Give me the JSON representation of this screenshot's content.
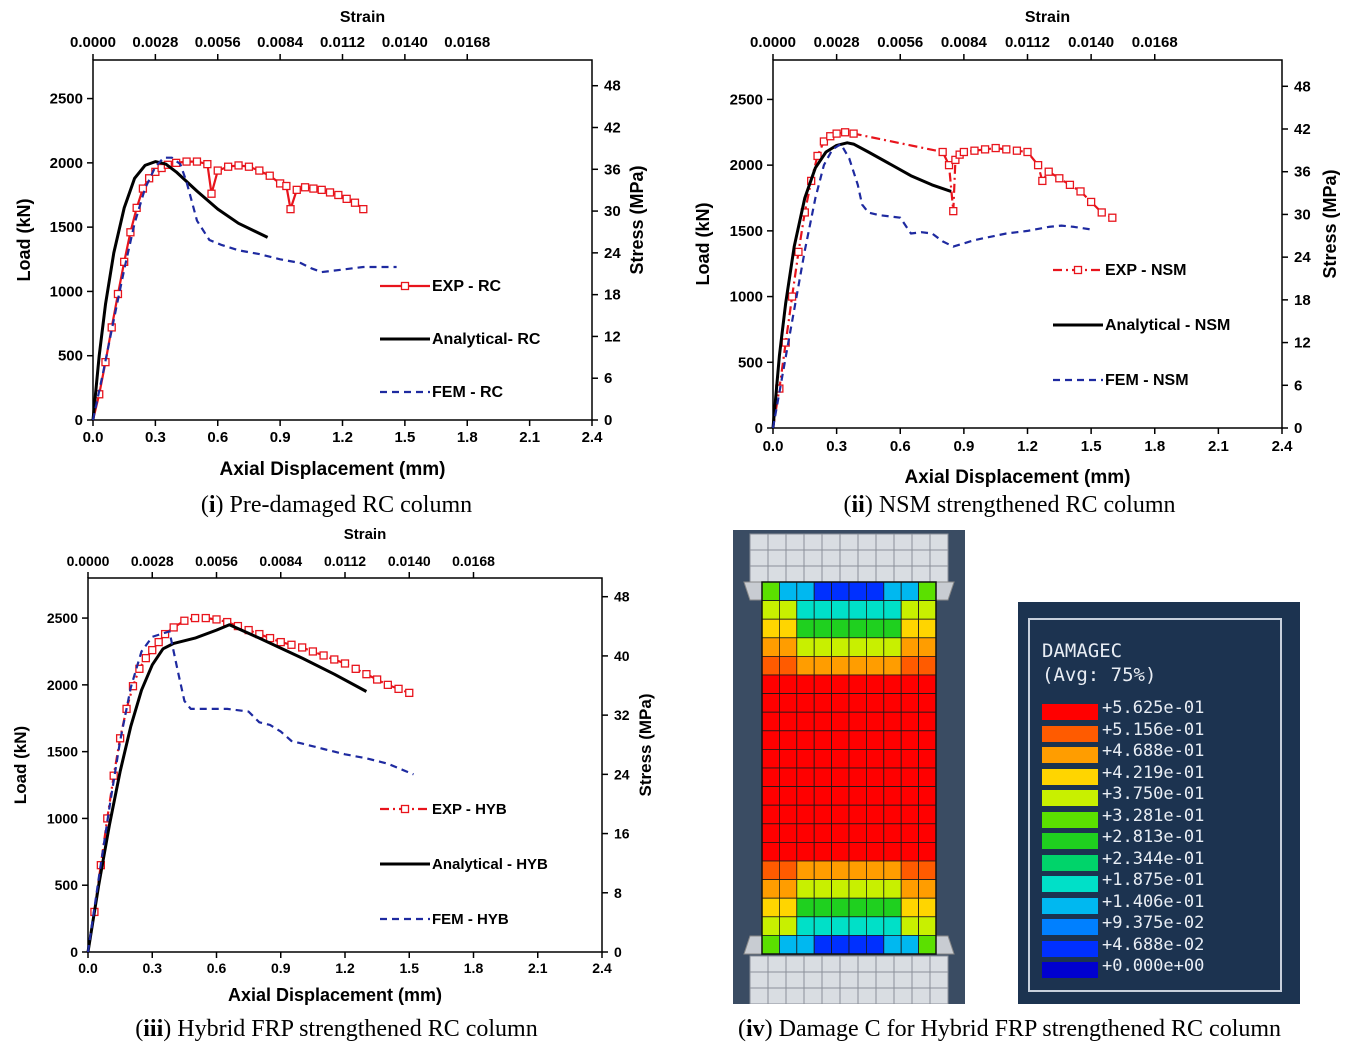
{
  "chart_data": [
    {
      "panel": "i",
      "type": "line",
      "xlabel": "Axial Displacement (mm)",
      "ylabel": "Load (kN)",
      "x2label": "Strain",
      "y2label": "Stress (MPa)",
      "xlim": [
        0,
        2.4
      ],
      "ylim": [
        0,
        2800
      ],
      "xticks": [
        "0.0",
        "0.3",
        "0.6",
        "0.9",
        "1.2",
        "1.5",
        "1.8",
        "2.1",
        "2.4"
      ],
      "yticks": [
        "0",
        "500",
        "1000",
        "1500",
        "2000",
        "2500"
      ],
      "x2ticks": [
        "0.0000",
        "0.0028",
        "0.0056",
        "0.0084",
        "0.0112",
        "0.0140",
        "0.0168"
      ],
      "y2ticks": [
        "0",
        "6",
        "12",
        "18",
        "24",
        "30",
        "36",
        "42",
        "48"
      ],
      "legend_position": "bottom-right",
      "series": [
        {
          "name": "EXP - RC",
          "color": "#e8141c",
          "style": "solid-square",
          "x": [
            0,
            0.03,
            0.06,
            0.09,
            0.12,
            0.15,
            0.18,
            0.21,
            0.24,
            0.27,
            0.3,
            0.33,
            0.36,
            0.4,
            0.45,
            0.5,
            0.55,
            0.57,
            0.6,
            0.65,
            0.7,
            0.75,
            0.8,
            0.85,
            0.9,
            0.93,
            0.95,
            0.98,
            1.02,
            1.06,
            1.1,
            1.14,
            1.18,
            1.22,
            1.26,
            1.3
          ],
          "y": [
            0,
            200,
            450,
            720,
            980,
            1230,
            1460,
            1650,
            1800,
            1880,
            1930,
            1960,
            1985,
            2000,
            2010,
            2010,
            1990,
            1760,
            1940,
            1970,
            1980,
            1970,
            1940,
            1900,
            1840,
            1820,
            1640,
            1790,
            1810,
            1800,
            1790,
            1770,
            1750,
            1720,
            1690,
            1640
          ]
        },
        {
          "name": "Analytical- RC",
          "color": "#000000",
          "style": "solid",
          "x": [
            0,
            0.03,
            0.06,
            0.1,
            0.15,
            0.2,
            0.25,
            0.3,
            0.35,
            0.4,
            0.5,
            0.6,
            0.7,
            0.84
          ],
          "y": [
            0,
            500,
            900,
            1300,
            1650,
            1880,
            1980,
            2010,
            1990,
            1930,
            1780,
            1640,
            1530,
            1420
          ]
        },
        {
          "name": "FEM - RC",
          "color": "#1e2aa0",
          "style": "dashed",
          "x": [
            0,
            0.05,
            0.1,
            0.15,
            0.2,
            0.25,
            0.3,
            0.34,
            0.38,
            0.42,
            0.45,
            0.5,
            0.56,
            0.62,
            0.7,
            0.8,
            0.9,
            1.0,
            1.05,
            1.1,
            1.2,
            1.3,
            1.4,
            1.46
          ],
          "y": [
            0,
            380,
            780,
            1170,
            1530,
            1800,
            1970,
            2040,
            2040,
            1990,
            1850,
            1550,
            1400,
            1360,
            1320,
            1290,
            1250,
            1220,
            1180,
            1150,
            1170,
            1190,
            1190,
            1190
          ]
        }
      ]
    },
    {
      "panel": "ii",
      "type": "line",
      "xlabel": "Axial Displacement (mm)",
      "ylabel": "Load (kN)",
      "x2label": "Strain",
      "y2label": "Stress (MPa)",
      "xlim": [
        0,
        2.4
      ],
      "ylim": [
        0,
        2800
      ],
      "xticks": [
        "0.0",
        "0.3",
        "0.6",
        "0.9",
        "1.2",
        "1.5",
        "1.8",
        "2.1",
        "2.4"
      ],
      "yticks": [
        "0",
        "500",
        "1000",
        "1500",
        "2000",
        "2500"
      ],
      "x2ticks": [
        "0.0000",
        "0.0028",
        "0.0056",
        "0.0084",
        "0.0112",
        "0.0140",
        "0.0168"
      ],
      "y2ticks": [
        "0",
        "6",
        "12",
        "18",
        "24",
        "30",
        "36",
        "42",
        "48"
      ],
      "legend_position": "bottom-right",
      "series": [
        {
          "name": "EXP - NSM",
          "color": "#e8141c",
          "style": "dashdot-square",
          "x": [
            0,
            0.03,
            0.06,
            0.09,
            0.12,
            0.15,
            0.18,
            0.21,
            0.24,
            0.27,
            0.3,
            0.34,
            0.38,
            0.8,
            0.83,
            0.85,
            0.86,
            0.88,
            0.9,
            0.95,
            1.0,
            1.05,
            1.1,
            1.15,
            1.2,
            1.25,
            1.27,
            1.3,
            1.35,
            1.4,
            1.45,
            1.5,
            1.55,
            1.6
          ],
          "y": [
            0,
            300,
            650,
            1000,
            1340,
            1640,
            1880,
            2070,
            2180,
            2220,
            2240,
            2250,
            2240,
            2100,
            2000,
            1650,
            2040,
            2080,
            2100,
            2110,
            2120,
            2130,
            2120,
            2110,
            2100,
            2000,
            1880,
            1950,
            1900,
            1850,
            1800,
            1720,
            1640,
            1600
          ]
        },
        {
          "name": "Analytical - NSM",
          "color": "#000000",
          "style": "solid",
          "x": [
            0,
            0.03,
            0.06,
            0.1,
            0.15,
            0.2,
            0.25,
            0.3,
            0.35,
            0.38,
            0.45,
            0.55,
            0.65,
            0.75,
            0.84
          ],
          "y": [
            0,
            550,
            950,
            1380,
            1750,
            1980,
            2100,
            2150,
            2170,
            2160,
            2100,
            2010,
            1920,
            1850,
            1800
          ]
        },
        {
          "name": "FEM - NSM",
          "color": "#1e2aa0",
          "style": "dashed",
          "x": [
            0,
            0.05,
            0.1,
            0.15,
            0.2,
            0.24,
            0.28,
            0.32,
            0.36,
            0.4,
            0.42,
            0.45,
            0.5,
            0.6,
            0.65,
            0.7,
            0.75,
            0.8,
            0.85,
            0.95,
            1.1,
            1.2,
            1.3,
            1.36,
            1.42,
            1.5
          ],
          "y": [
            0,
            450,
            900,
            1350,
            1750,
            2000,
            2120,
            2160,
            2050,
            1850,
            1700,
            1640,
            1620,
            1600,
            1480,
            1490,
            1480,
            1420,
            1380,
            1430,
            1480,
            1500,
            1530,
            1540,
            1530,
            1510
          ]
        }
      ]
    },
    {
      "panel": "iii",
      "type": "line",
      "xlabel": "Axial Displacement (mm)",
      "ylabel": "Load (kN)",
      "x2label": "Strain",
      "y2label": "Stress (MPa)",
      "xlim": [
        0,
        2.4
      ],
      "ylim": [
        0,
        2800
      ],
      "xticks": [
        "0.0",
        "0.3",
        "0.6",
        "0.9",
        "1.2",
        "1.5",
        "1.8",
        "2.1",
        "2.4"
      ],
      "yticks": [
        "0",
        "500",
        "1000",
        "1500",
        "2000",
        "2500"
      ],
      "x2ticks": [
        "0.0000",
        "0.0028",
        "0.0056",
        "0.0084",
        "0.0112",
        "0.0140",
        "0.0168"
      ],
      "y2ticks": [
        "0",
        "8",
        "16",
        "24",
        "32",
        "40",
        "48"
      ],
      "legend_position": "bottom-right",
      "series": [
        {
          "name": "EXP - HYB",
          "color": "#e8141c",
          "style": "dashdot-square",
          "x": [
            0,
            0.03,
            0.06,
            0.09,
            0.12,
            0.15,
            0.18,
            0.21,
            0.24,
            0.27,
            0.3,
            0.33,
            0.36,
            0.4,
            0.45,
            0.5,
            0.55,
            0.6,
            0.65,
            0.7,
            0.75,
            0.8,
            0.85,
            0.9,
            0.95,
            1.0,
            1.05,
            1.1,
            1.15,
            1.2,
            1.25,
            1.3,
            1.35,
            1.4,
            1.45,
            1.5
          ],
          "y": [
            0,
            300,
            650,
            1000,
            1320,
            1600,
            1820,
            1990,
            2120,
            2200,
            2260,
            2320,
            2380,
            2430,
            2480,
            2500,
            2500,
            2490,
            2470,
            2440,
            2410,
            2380,
            2350,
            2320,
            2300,
            2280,
            2250,
            2220,
            2190,
            2160,
            2120,
            2080,
            2040,
            2000,
            1970,
            1940
          ]
        },
        {
          "name": "Analytical - HYB",
          "color": "#000000",
          "style": "solid",
          "x": [
            0,
            0.05,
            0.1,
            0.15,
            0.2,
            0.25,
            0.3,
            0.35,
            0.4,
            0.5,
            0.6,
            0.66,
            0.8,
            1.0,
            1.15,
            1.3
          ],
          "y": [
            0,
            500,
            950,
            1350,
            1690,
            1960,
            2150,
            2270,
            2310,
            2350,
            2410,
            2450,
            2350,
            2200,
            2080,
            1950
          ]
        },
        {
          "name": "FEM - HYB",
          "color": "#1e2aa0",
          "style": "dashed",
          "x": [
            0,
            0.05,
            0.1,
            0.15,
            0.2,
            0.25,
            0.3,
            0.34,
            0.38,
            0.42,
            0.45,
            0.48,
            0.55,
            0.65,
            0.75,
            0.8,
            0.85,
            0.9,
            0.95,
            1.0,
            1.1,
            1.2,
            1.3,
            1.4,
            1.52
          ],
          "y": [
            0,
            550,
            1080,
            1580,
            1980,
            2250,
            2360,
            2380,
            2400,
            2100,
            1880,
            1820,
            1820,
            1820,
            1800,
            1720,
            1700,
            1650,
            1580,
            1560,
            1520,
            1480,
            1450,
            1410,
            1330
          ]
        }
      ]
    }
  ],
  "captions": {
    "i": {
      "num": "i",
      "text": "Pre-damaged RC column"
    },
    "ii": {
      "num": "ii",
      "text": "NSM strengthened RC column"
    },
    "iii": {
      "num": "iii",
      "text": "Hybrid FRP strengthened RC column"
    },
    "iv": {
      "num": "iv",
      "text": "Damage C for Hybrid FRP strengthened RC column"
    }
  },
  "contour_legend": {
    "title": "DAMAGEC",
    "subtitle": "(Avg: 75%)",
    "levels": [
      {
        "value": "+5.625e-01",
        "color": "#ff0000"
      },
      {
        "value": "+5.156e-01",
        "color": "#ff5b00"
      },
      {
        "value": "+4.688e-01",
        "color": "#ff9d00"
      },
      {
        "value": "+4.219e-01",
        "color": "#ffd500"
      },
      {
        "value": "+3.750e-01",
        "color": "#c8f000"
      },
      {
        "value": "+3.281e-01",
        "color": "#5be000"
      },
      {
        "value": "+2.813e-01",
        "color": "#1fd01f"
      },
      {
        "value": "+2.344e-01",
        "color": "#00d46a"
      },
      {
        "value": "+1.875e-01",
        "color": "#00e0c8"
      },
      {
        "value": "+1.406e-01",
        "color": "#00b8f0"
      },
      {
        "value": "+9.375e-02",
        "color": "#0080ff"
      },
      {
        "value": "+4.688e-02",
        "color": "#0030ff"
      },
      {
        "value": "+0.000e+00",
        "color": "#0000d0"
      }
    ]
  }
}
